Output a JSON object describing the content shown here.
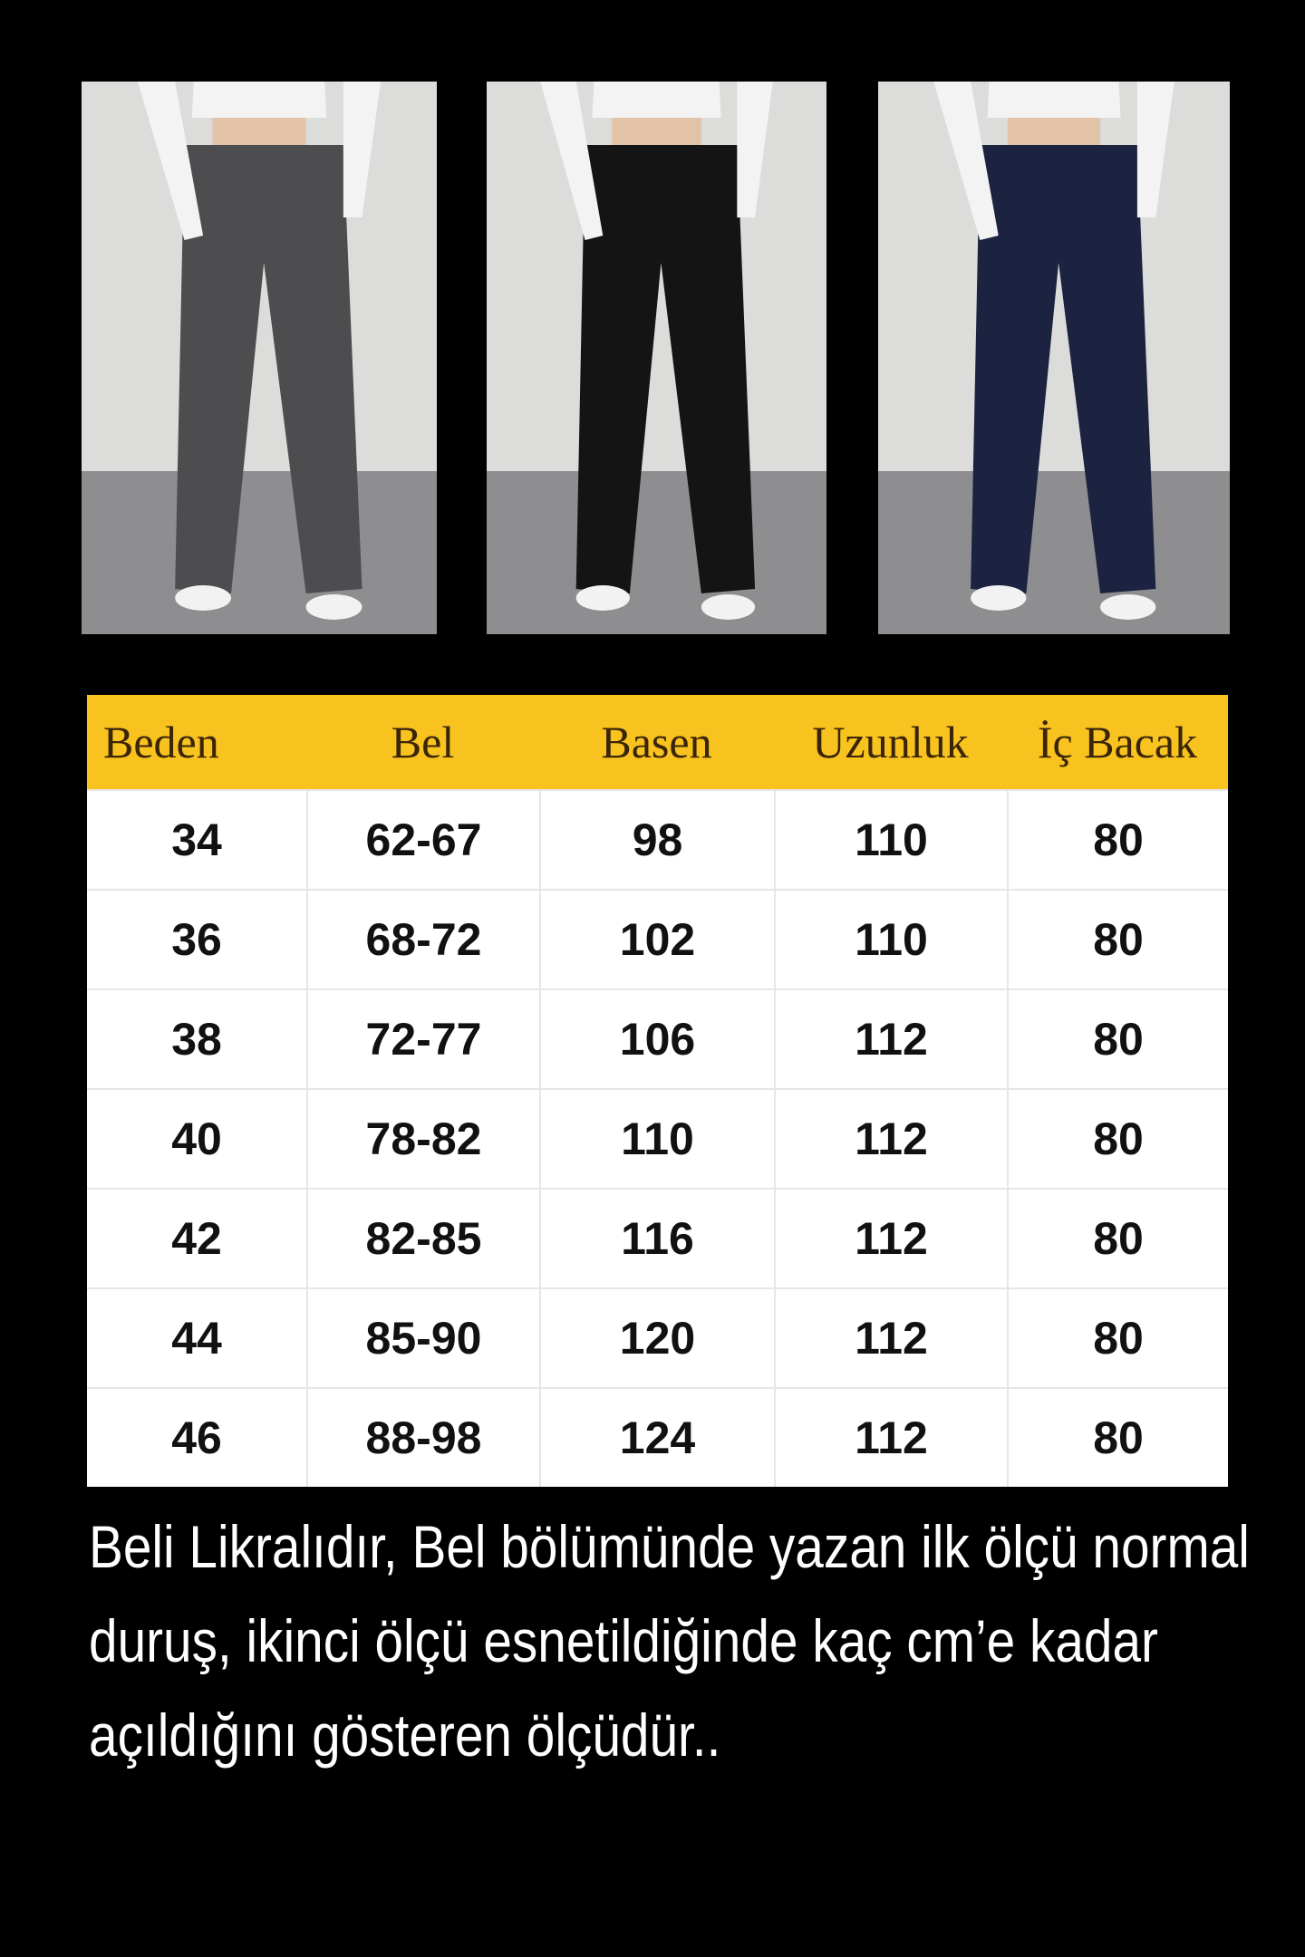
{
  "photos": [
    {
      "pants_color": "#4d4d4f"
    },
    {
      "pants_color": "#141414"
    },
    {
      "pants_color": "#1b2340"
    }
  ],
  "table": {
    "header_color": "#f8c21f",
    "headers": [
      "Beden",
      "Bel",
      "Basen",
      "Uzunluk",
      "İç Bacak"
    ],
    "rows": [
      [
        "34",
        "62-67",
        "98",
        "110",
        "80"
      ],
      [
        "36",
        "68-72",
        "102",
        "110",
        "80"
      ],
      [
        "38",
        "72-77",
        "106",
        "112",
        "80"
      ],
      [
        "40",
        "78-82",
        "110",
        "112",
        "80"
      ],
      [
        "42",
        "82-85",
        "116",
        "112",
        "80"
      ],
      [
        "44",
        "85-90",
        "120",
        "112",
        "80"
      ],
      [
        "46",
        "88-98",
        "124",
        "112",
        "80"
      ]
    ]
  },
  "note": "Beli Likralıdır, Bel bölümünde yazan ilk ölçü normal duruş, ikinci ölçü esnetildiğinde kaç cm’e kadar açıldığını gösteren ölçüdür.."
}
